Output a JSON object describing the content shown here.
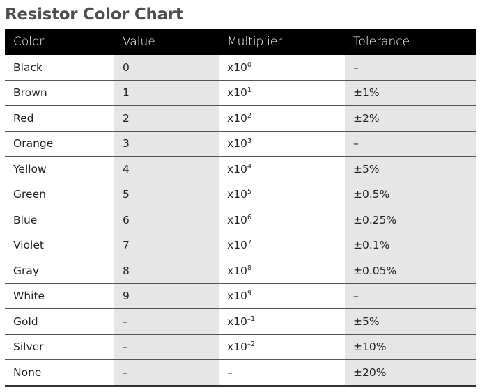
{
  "title": "Resistor Color Chart",
  "headers": {
    "color": "Color",
    "value": "Value",
    "multiplier": "Multiplier",
    "tolerance": "Tolerance"
  },
  "rows": [
    {
      "color": "Black",
      "value": "0",
      "mult_base": "x10",
      "mult_exp": "0",
      "tolerance": "–"
    },
    {
      "color": "Brown",
      "value": "1",
      "mult_base": "x10",
      "mult_exp": "1",
      "tolerance": "±1%"
    },
    {
      "color": "Red",
      "value": "2",
      "mult_base": "x10",
      "mult_exp": "2",
      "tolerance": "±2%"
    },
    {
      "color": "Orange",
      "value": "3",
      "mult_base": "x10",
      "mult_exp": "3",
      "tolerance": "–"
    },
    {
      "color": "Yellow",
      "value": "4",
      "mult_base": "x10",
      "mult_exp": "4",
      "tolerance": "±5%"
    },
    {
      "color": "Green",
      "value": "5",
      "mult_base": "x10",
      "mult_exp": "5",
      "tolerance": "±0.5%"
    },
    {
      "color": "Blue",
      "value": "6",
      "mult_base": "x10",
      "mult_exp": "6",
      "tolerance": "±0.25%"
    },
    {
      "color": "Violet",
      "value": "7",
      "mult_base": "x10",
      "mult_exp": "7",
      "tolerance": "±0.1%"
    },
    {
      "color": "Gray",
      "value": "8",
      "mult_base": "x10",
      "mult_exp": "8",
      "tolerance": "±0.05%"
    },
    {
      "color": "White",
      "value": "9",
      "mult_base": "x10",
      "mult_exp": "9",
      "tolerance": "–"
    },
    {
      "color": "Gold",
      "value": "–",
      "mult_base": "x10",
      "mult_exp": "–1",
      "tolerance": "±5%"
    },
    {
      "color": "Silver",
      "value": "–",
      "mult_base": "x10",
      "mult_exp": "–2",
      "tolerance": "±10%"
    },
    {
      "color": "None",
      "value": "–",
      "mult_base": "–",
      "mult_exp": "",
      "tolerance": "±20%"
    }
  ],
  "style": {
    "header_bg": "#000000",
    "header_fg": "#ffffff",
    "shade_bg": "#e6e6e6",
    "title_color": "#4f4f4f"
  }
}
